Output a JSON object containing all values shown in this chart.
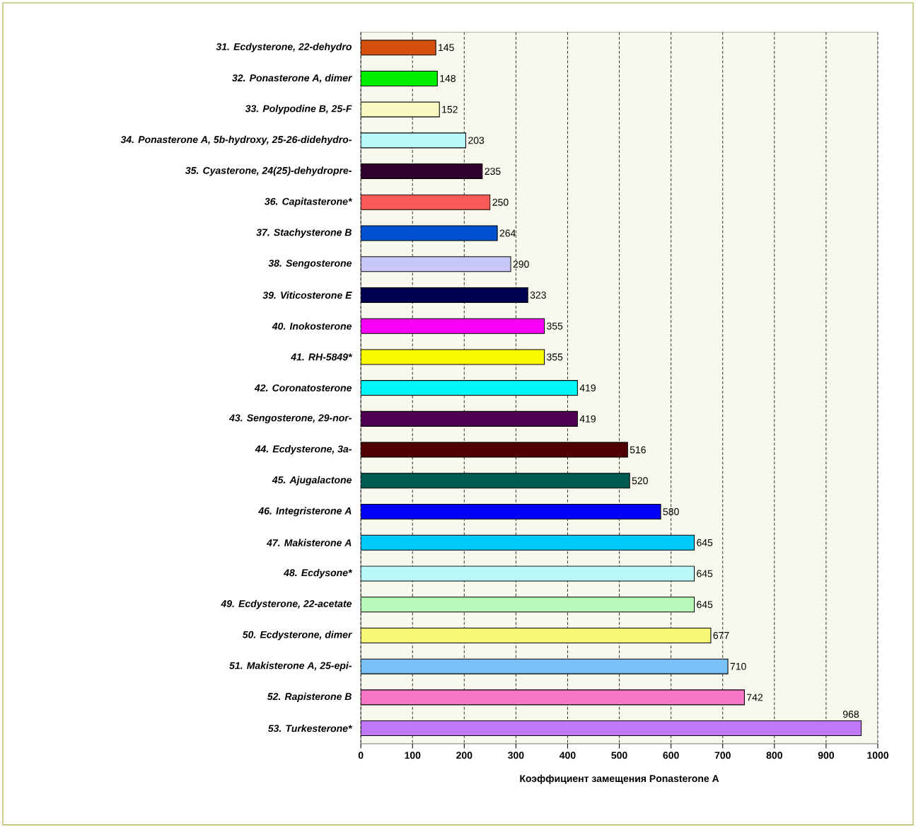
{
  "chart_data": {
    "type": "bar",
    "orientation": "horizontal",
    "xlabel": "Коэффициент замещения Ponasterone A",
    "categories": [
      "31. Ecdysterone, 22-dehydro",
      "32. Ponasterone A, dimer",
      "33. Polypodine B, 25-F",
      "34. Ponasterone A, 5b-hydroxy, 25-26-didehydro-",
      "35. Cyasterone, 24(25)-dehydropre-",
      "36. Capitasterone*",
      "37. Stachysterone B",
      "38. Sengosterone",
      "39. Viticosterone E",
      "40. Inokosterone",
      "41. RH-5849*",
      "42. Coronatosterone",
      "43. Sengosterone, 29-nor-",
      "44. Ecdysterone, 3a-",
      "45. Ajugalactone",
      "46. Integristerone A",
      "47. Makisterone A",
      "48. Ecdysone*",
      "49. Ecdysterone, 22-acetate",
      "50. Ecdysterone, dimer",
      "51. Makisterone A, 25-epi-",
      "52. Rapisterone B",
      "53. Turkesterone*"
    ],
    "values": [
      145,
      148,
      152,
      203,
      235,
      250,
      264,
      290,
      323,
      355,
      355,
      419,
      419,
      516,
      520,
      580,
      645,
      645,
      645,
      677,
      710,
      742,
      968
    ],
    "colors": [
      "#d4500c",
      "#00f000",
      "#f8f8c0",
      "#b8f8f8",
      "#300030",
      "#f85a58",
      "#0050d0",
      "#c8c8f8",
      "#000050",
      "#f800f8",
      "#f8f800",
      "#00f8f8",
      "#500050",
      "#500000",
      "#005a50",
      "#0000f8",
      "#00c8f8",
      "#b8f8f8",
      "#b8f8b8",
      "#f8f878",
      "#78c0f8",
      "#f878c8",
      "#c078f8"
    ],
    "xlim": [
      0,
      1000
    ],
    "xticks": [
      0,
      100,
      200,
      300,
      400,
      500,
      600,
      700,
      800,
      900,
      1000
    ],
    "grid": "x",
    "data_labels": true
  }
}
